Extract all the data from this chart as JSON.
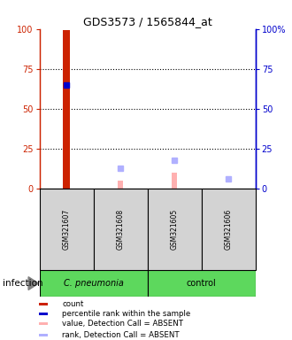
{
  "title": "GDS3573 / 1565844_at",
  "samples": [
    "GSM321607",
    "GSM321608",
    "GSM321605",
    "GSM321606"
  ],
  "ylim": [
    0,
    100
  ],
  "left_ticks": [
    0,
    25,
    50,
    75,
    100
  ],
  "right_ticks": [
    0,
    25,
    50,
    75,
    100
  ],
  "right_tick_labels": [
    "0",
    "25",
    "50",
    "75",
    "100%"
  ],
  "count_values": [
    99,
    0,
    0,
    0
  ],
  "count_color": "#CC2200",
  "percentile_rank_values": [
    65,
    null,
    null,
    null
  ],
  "percentile_rank_color": "#0000CC",
  "value_absent_values": [
    null,
    5,
    10,
    null
  ],
  "value_absent_color": "#FFB0B0",
  "rank_absent_values": [
    null,
    13,
    18,
    6
  ],
  "rank_absent_color": "#B0B0FF",
  "bar_width": 0.13,
  "infection_label": "infection",
  "cpneumonia_label": "C. pneumonia",
  "control_label": "control",
  "group_green": "#5DD85D",
  "sample_gray": "#D3D3D3",
  "legend_items": [
    {
      "label": "count",
      "color": "#CC2200"
    },
    {
      "label": "percentile rank within the sample",
      "color": "#0000CC"
    },
    {
      "label": "value, Detection Call = ABSENT",
      "color": "#FFB0B0"
    },
    {
      "label": "rank, Detection Call = ABSENT",
      "color": "#B0B0FF"
    }
  ]
}
